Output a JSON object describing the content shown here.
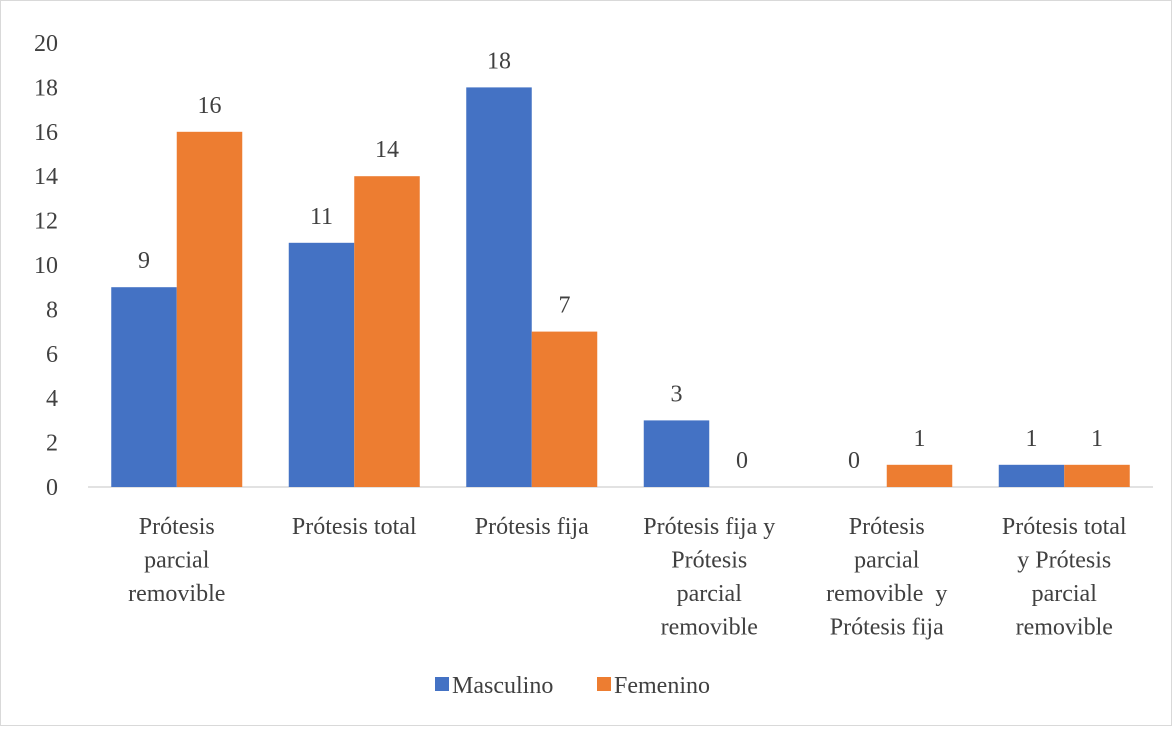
{
  "chart_data": {
    "type": "bar",
    "title": "",
    "xlabel": "",
    "ylabel": "",
    "ylim": [
      0,
      20
    ],
    "yticks": [
      0,
      2,
      4,
      6,
      8,
      10,
      12,
      14,
      16,
      18,
      20
    ],
    "grid": false,
    "legend_position": "bottom",
    "categories": [
      [
        "Prótesis",
        "parcial",
        "removible"
      ],
      [
        "Prótesis total"
      ],
      [
        "Prótesis fija"
      ],
      [
        "Prótesis fija y",
        "Prótesis",
        "parcial",
        "removible"
      ],
      [
        "Prótesis",
        "parcial",
        "removible  y",
        "Prótesis fija"
      ],
      [
        "Prótesis total",
        "y Prótesis",
        "parcial",
        "removible"
      ]
    ],
    "series": [
      {
        "name": "Masculino",
        "color": "#4472C4",
        "values": [
          9,
          11,
          18,
          3,
          0,
          1
        ]
      },
      {
        "name": "Femenino",
        "color": "#ED7D31",
        "values": [
          16,
          14,
          7,
          0,
          1,
          1
        ]
      }
    ]
  }
}
